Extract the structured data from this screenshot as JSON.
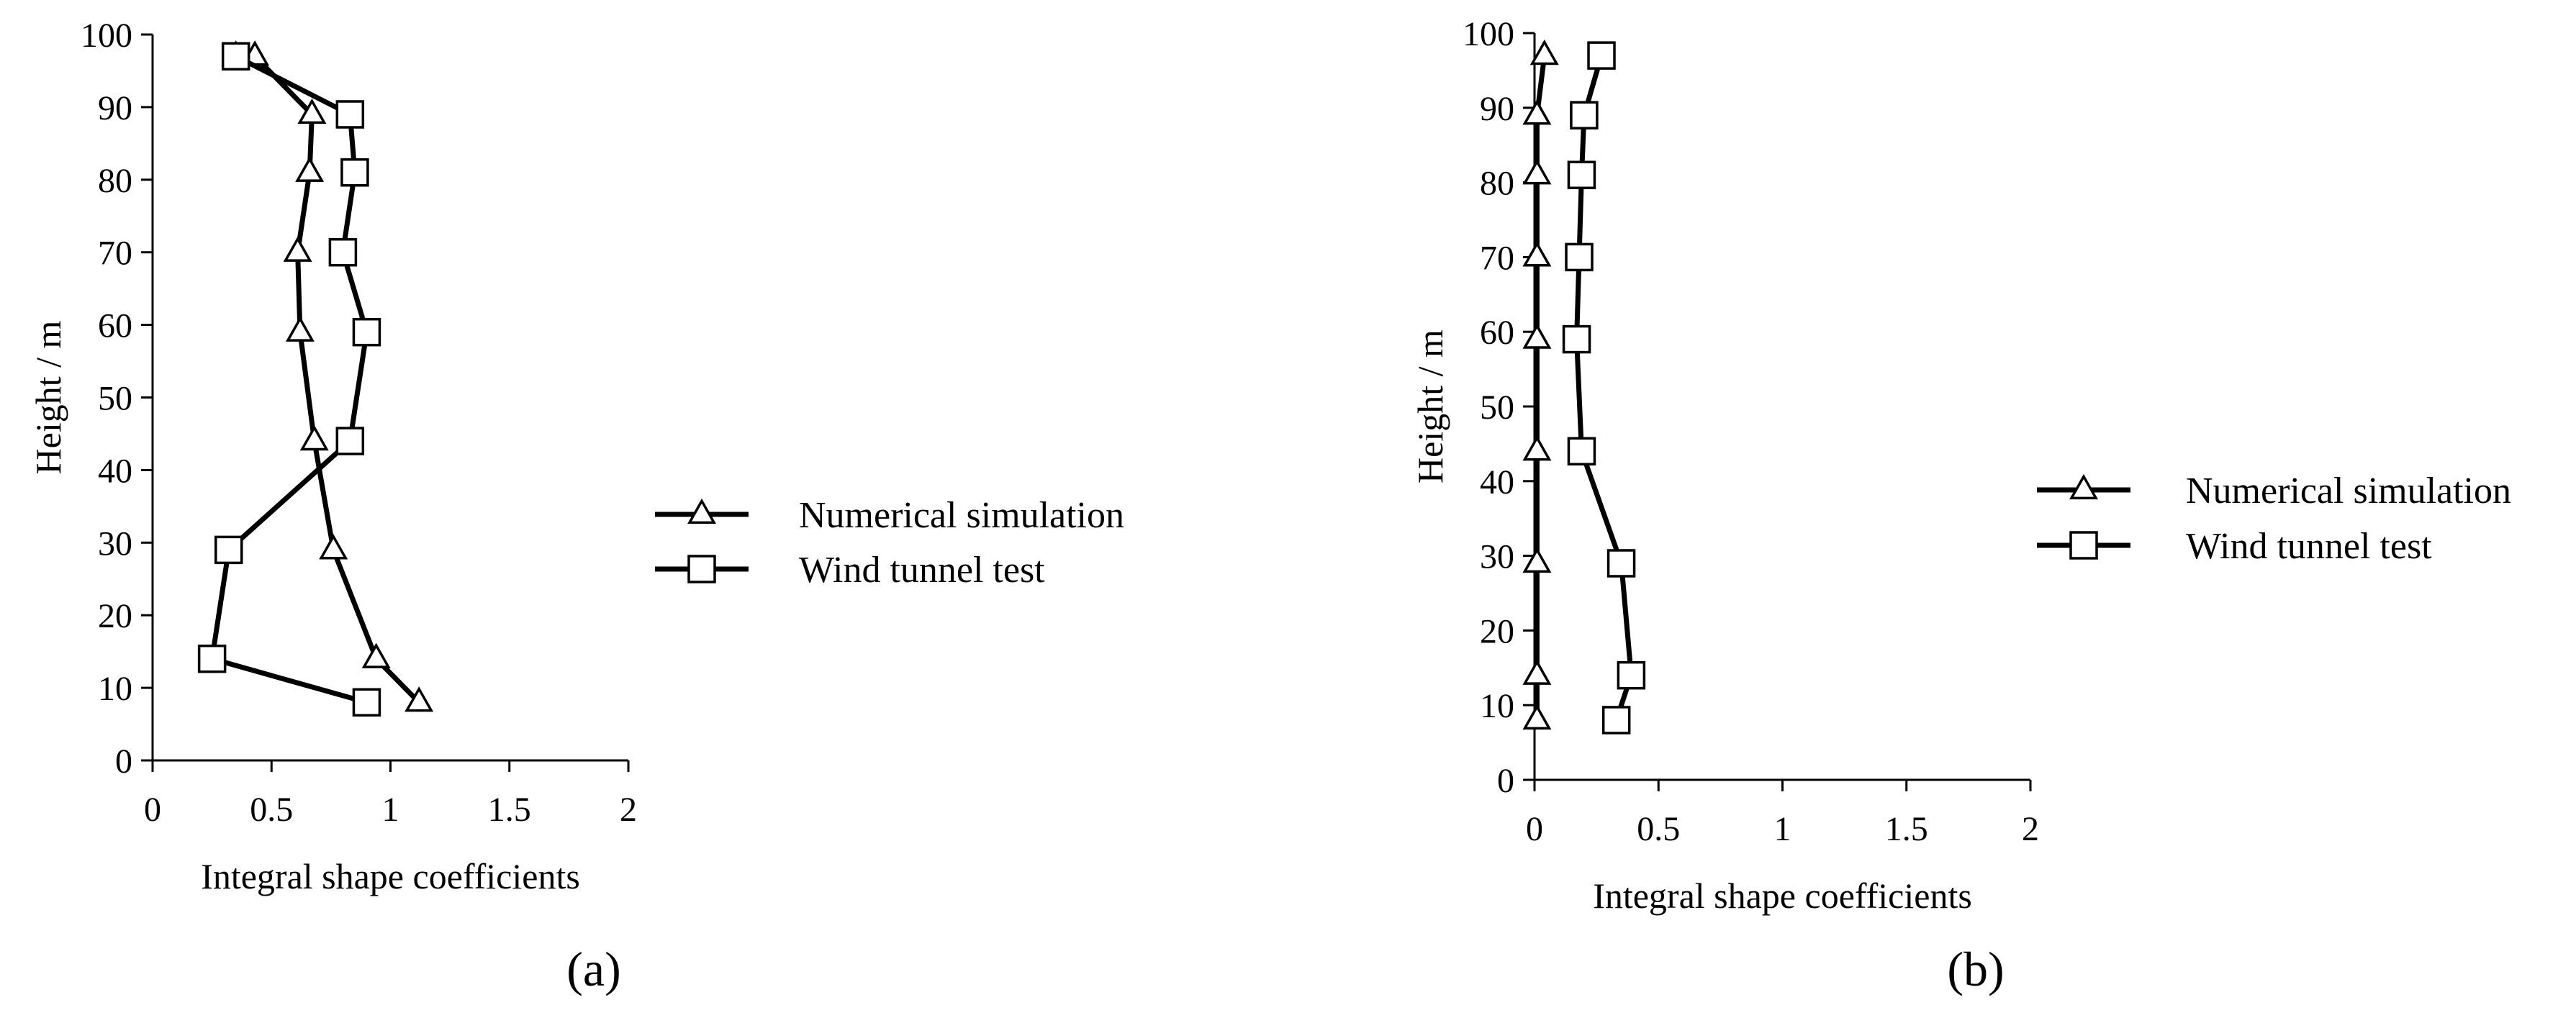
{
  "chart_data": [
    {
      "type": "line",
      "panel_label": "(a)",
      "xlabel": "Integral shape coefficients",
      "ylabel": "Height / m",
      "xlim": [
        0,
        2
      ],
      "ylim": [
        0,
        100
      ],
      "xticks": [
        0,
        0.5,
        1,
        1.5,
        2
      ],
      "yticks": [
        0,
        10,
        20,
        30,
        40,
        50,
        60,
        70,
        80,
        90,
        100
      ],
      "grid": false,
      "legend_position": "right",
      "series": [
        {
          "name": "Numerical simulation",
          "marker": "triangle",
          "points": [
            [
              1.12,
              8
            ],
            [
              0.94,
              14
            ],
            [
              0.76,
              29
            ],
            [
              0.68,
              44
            ],
            [
              0.62,
              59
            ],
            [
              0.61,
              70
            ],
            [
              0.66,
              81
            ],
            [
              0.67,
              89
            ],
            [
              0.43,
              97
            ],
            [
              0.35,
              97
            ]
          ]
        },
        {
          "name": "Wind tunnel test",
          "marker": "square",
          "points": [
            [
              0.9,
              8
            ],
            [
              0.25,
              14
            ],
            [
              0.32,
              29
            ],
            [
              0.83,
              44
            ],
            [
              0.9,
              59
            ],
            [
              0.8,
              70
            ],
            [
              0.85,
              81
            ],
            [
              0.83,
              89
            ],
            [
              0.35,
              97
            ]
          ]
        }
      ]
    },
    {
      "type": "line",
      "panel_label": "(b)",
      "xlabel": "Integral shape coefficients",
      "ylabel": "Height / m",
      "xlim": [
        0,
        2
      ],
      "ylim": [
        0,
        100
      ],
      "xticks": [
        0,
        0.5,
        1,
        1.5,
        2
      ],
      "yticks": [
        0,
        10,
        20,
        30,
        40,
        50,
        60,
        70,
        80,
        90,
        100
      ],
      "grid": false,
      "legend_position": "right",
      "series": [
        {
          "name": "Numerical simulation",
          "marker": "triangle",
          "points": [
            [
              0.01,
              8
            ],
            [
              0.01,
              14
            ],
            [
              0.01,
              29
            ],
            [
              0.01,
              44
            ],
            [
              0.01,
              59
            ],
            [
              0.01,
              70
            ],
            [
              0.01,
              81
            ],
            [
              0.01,
              89
            ],
            [
              0.04,
              97
            ]
          ]
        },
        {
          "name": "Wind tunnel test",
          "marker": "square",
          "points": [
            [
              0.33,
              8
            ],
            [
              0.39,
              14
            ],
            [
              0.35,
              29
            ],
            [
              0.19,
              44
            ],
            [
              0.17,
              59
            ],
            [
              0.18,
              70
            ],
            [
              0.19,
              81
            ],
            [
              0.2,
              89
            ],
            [
              0.27,
              97
            ]
          ]
        }
      ]
    }
  ]
}
